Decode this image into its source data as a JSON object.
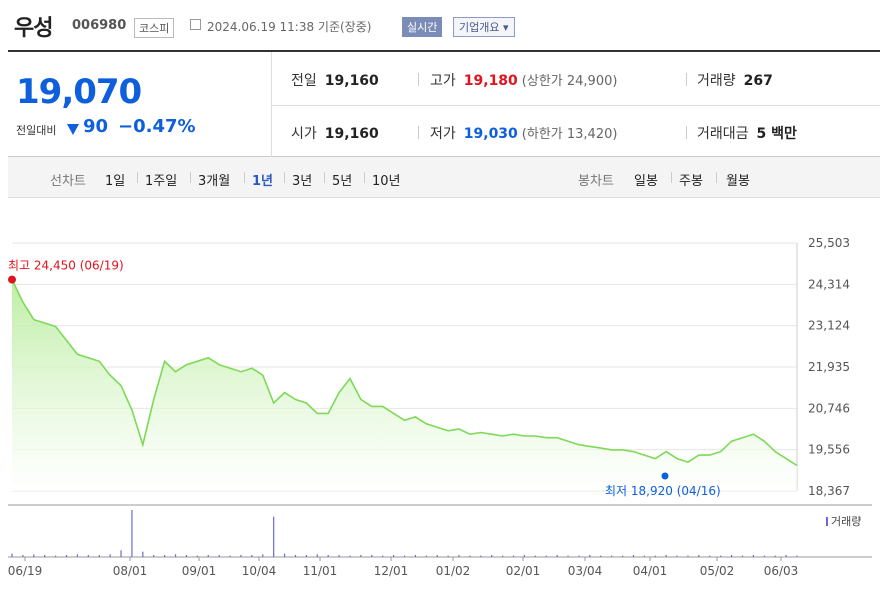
{
  "header": {
    "name": "우성",
    "code": "006980",
    "market": "코스피",
    "datetime": "2024.06.19 11:38 기준(장중)",
    "realtime_label": "실시간",
    "company_overview_label": "기업개요 ▾"
  },
  "summary": {
    "price": "19,070",
    "change_label": "전일대비",
    "change_value": "90",
    "change_pct": "−0.47%",
    "prev_label": "전일",
    "prev_value": "19,160",
    "high_label": "고가",
    "high_value": "19,180",
    "upper_limit": "(상한가 24,900)",
    "volume_label": "거래량",
    "volume_value": "267",
    "open_label": "시가",
    "open_value": "19,160",
    "low_label": "저가",
    "low_value": "19,030",
    "lower_limit": "(하한가 13,420)",
    "amount_label": "거래대금",
    "amount_value": "5 백만"
  },
  "tabs": {
    "line_chart": "선차트",
    "periods": [
      "1일",
      "1주일",
      "3개월",
      "1년",
      "3년",
      "5년",
      "10년"
    ],
    "selected_period": "1년",
    "candle_chart": "봉차트",
    "candle_periods": [
      "일봉",
      "주봉",
      "월봉"
    ]
  },
  "colors": {
    "line": "#7ed957",
    "fill": "#c8f0b0",
    "up": "#e0141e",
    "down": "#0d5fdc",
    "volume": "#6a6ad6"
  },
  "chart_data": {
    "type": "area",
    "yticks": [
      "25,503",
      "24,314",
      "23,124",
      "21,935",
      "20,746",
      "19,556",
      "18,367"
    ],
    "ylim": [
      18367,
      25503
    ],
    "xticks": [
      "06/19",
      "08/01",
      "09/01",
      "10/04",
      "11/01",
      "12/01",
      "01/02",
      "02/01",
      "03/04",
      "04/01",
      "05/02",
      "06/03"
    ],
    "max_annotation": "최고 24,450 (06/19)",
    "min_annotation": "최저 18,920 (04/16)",
    "volume_legend": "거래량",
    "series": [
      {
        "values": [
          24450,
          23800,
          23300,
          23200,
          23100,
          22700,
          22300,
          22200,
          22100,
          21700,
          21400,
          20700,
          19700,
          21000,
          22100,
          21800,
          22000,
          22100,
          22200,
          22000,
          21900,
          21800,
          21900,
          21700,
          20900,
          21200,
          21000,
          20900,
          20600,
          20600,
          21200,
          21600,
          21000,
          20800,
          20800,
          20600,
          20400,
          20500,
          20300,
          20200,
          20100,
          20150,
          20000,
          20050,
          20000,
          19950,
          20000,
          19950,
          19950,
          19900,
          19900,
          19800,
          19700,
          19650,
          19600,
          19550,
          19550,
          19500,
          19400,
          19300,
          19500,
          19300,
          19200,
          19400,
          19400,
          19500,
          19800,
          19900,
          20000,
          19800,
          19500,
          19300,
          19100
        ],
        "volume": [
          5,
          3,
          4,
          3,
          2,
          3,
          4,
          3,
          3,
          4,
          10,
          70,
          8,
          3,
          3,
          4,
          3,
          2,
          3,
          3,
          2,
          3,
          3,
          4,
          60,
          5,
          3,
          3,
          4,
          3,
          3,
          2,
          3,
          3,
          2,
          3,
          2,
          3,
          2,
          3,
          2,
          3,
          2,
          2,
          3,
          2,
          2,
          3,
          2,
          2,
          3,
          2,
          2,
          3,
          2,
          2,
          2,
          3,
          2,
          2,
          3,
          2,
          2,
          3,
          2,
          2,
          3,
          2,
          3,
          2,
          2,
          3,
          2
        ]
      }
    ]
  }
}
